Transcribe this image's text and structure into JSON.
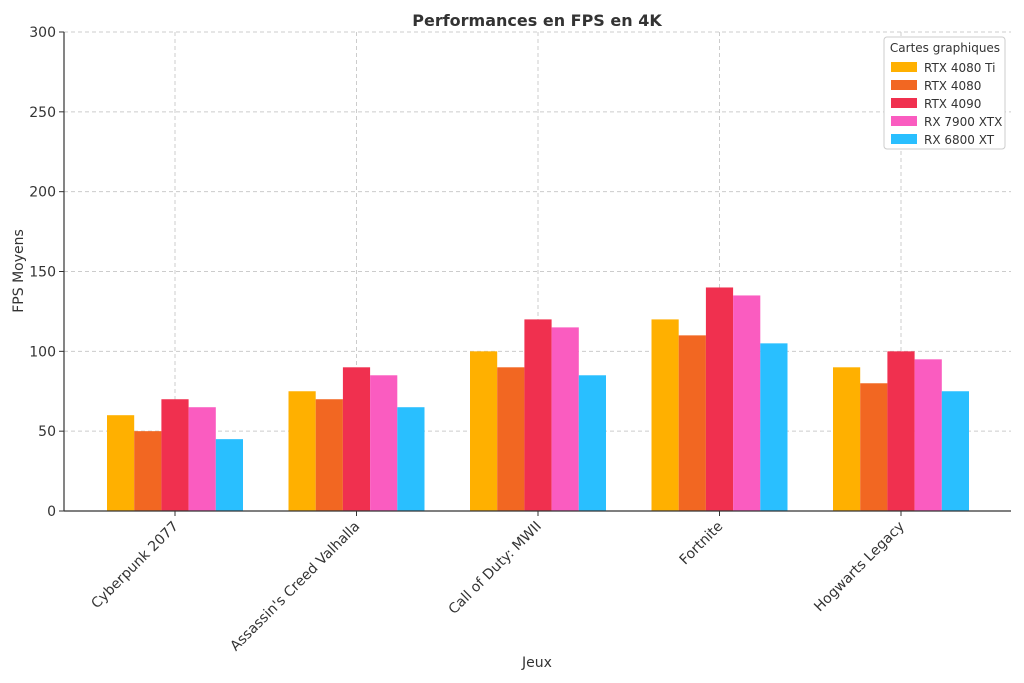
{
  "chart_data": {
    "type": "bar",
    "title": "Performances en FPS en 4K",
    "xlabel": "Jeux",
    "ylabel": "FPS Moyens",
    "ylim": [
      0,
      300
    ],
    "yticks": [
      0,
      50,
      100,
      150,
      200,
      250,
      300
    ],
    "grid": true,
    "legend_title": "Cartes graphiques",
    "legend_position": "top-right",
    "categories": [
      "Cyberpunk 2077",
      "Assassin's Creed Valhalla",
      "Call of Duty: MWII",
      "Fortnite",
      "Hogwarts Legacy"
    ],
    "series": [
      {
        "name": "RTX 4080 Ti",
        "color": "#FFB000",
        "values": [
          60,
          75,
          100,
          120,
          90
        ]
      },
      {
        "name": "RTX 4080",
        "color": "#F26722",
        "values": [
          50,
          70,
          90,
          110,
          80
        ]
      },
      {
        "name": "RTX 4090",
        "color": "#F0304F",
        "values": [
          70,
          90,
          120,
          140,
          100
        ]
      },
      {
        "name": "RX 7900 XTX",
        "color": "#FA5CC0",
        "values": [
          65,
          85,
          115,
          135,
          95
        ]
      },
      {
        "name": "RX 6800 XT",
        "color": "#29BFFF",
        "values": [
          45,
          65,
          85,
          105,
          75
        ]
      }
    ]
  }
}
